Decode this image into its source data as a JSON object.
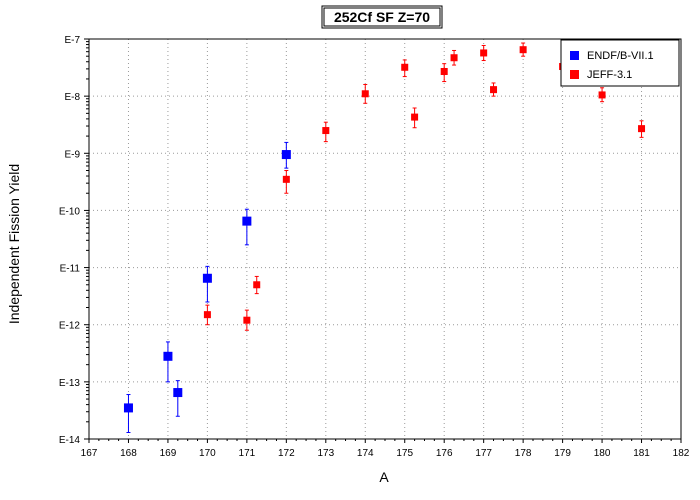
{
  "chart_data": {
    "type": "scatter",
    "title": "252Cf SF Z=70",
    "xlabel": "A",
    "ylabel": "Independent Fission Yield",
    "xlim": [
      167,
      182
    ],
    "ylim": [
      1e-14,
      1e-07
    ],
    "y_scale": "log",
    "grid": true,
    "legend_position": "top-right",
    "x_ticks": [
      "167",
      "168",
      "169",
      "170",
      "171",
      "172",
      "173",
      "174",
      "175",
      "176",
      "177",
      "178",
      "179",
      "180",
      "181",
      "182"
    ],
    "y_ticks": [
      {
        "label": "E-7",
        "value": 1e-07
      },
      {
        "label": "E-8",
        "value": 1e-08
      },
      {
        "label": "E-9",
        "value": 1e-09
      },
      {
        "label": "E-10",
        "value": 1e-10
      },
      {
        "label": "E-11",
        "value": 1e-11
      },
      {
        "label": "E-12",
        "value": 1e-12
      },
      {
        "label": "E-13",
        "value": 1e-13
      },
      {
        "label": "E-14",
        "value": 1e-14
      }
    ],
    "series": [
      {
        "name": "ENDF/B-VII.1",
        "color": "#0000ff",
        "marker": "square",
        "points": [
          {
            "x": 168,
            "y": 3.5e-14,
            "ylo": 1.3e-14,
            "yhi": 6e-14
          },
          {
            "x": 169,
            "y": 2.8e-13,
            "ylo": 1e-13,
            "yhi": 5e-13
          },
          {
            "x": 169.25,
            "y": 6.5e-14,
            "ylo": 2.5e-14,
            "yhi": 1.05e-13
          },
          {
            "x": 170,
            "y": 6.5e-12,
            "ylo": 2.5e-12,
            "yhi": 1.05e-11
          },
          {
            "x": 171,
            "y": 6.5e-11,
            "ylo": 2.5e-11,
            "yhi": 1.05e-10
          },
          {
            "x": 172,
            "y": 9.5e-10,
            "ylo": 5.5e-10,
            "yhi": 1.55e-09
          }
        ]
      },
      {
        "name": "JEFF-3.1",
        "color": "#ff0000",
        "marker": "square",
        "points": [
          {
            "x": 170,
            "y": 1.5e-12,
            "ylo": 1e-12,
            "yhi": 2.2e-12
          },
          {
            "x": 171,
            "y": 1.2e-12,
            "ylo": 8e-13,
            "yhi": 1.8e-12
          },
          {
            "x": 171.25,
            "y": 5e-12,
            "ylo": 3.5e-12,
            "yhi": 7e-12
          },
          {
            "x": 172,
            "y": 3.5e-10,
            "ylo": 2e-10,
            "yhi": 5e-10
          },
          {
            "x": 173,
            "y": 2.5e-09,
            "ylo": 1.6e-09,
            "yhi": 3.5e-09
          },
          {
            "x": 174,
            "y": 1.1e-08,
            "ylo": 7.5e-09,
            "yhi": 1.6e-08
          },
          {
            "x": 175,
            "y": 3.2e-08,
            "ylo": 2.2e-08,
            "yhi": 4.3e-08
          },
          {
            "x": 175.25,
            "y": 4.3e-09,
            "ylo": 2.8e-09,
            "yhi": 6.2e-09
          },
          {
            "x": 176,
            "y": 2.7e-08,
            "ylo": 1.8e-08,
            "yhi": 3.7e-08
          },
          {
            "x": 176.25,
            "y": 4.7e-08,
            "ylo": 3.5e-08,
            "yhi": 6.3e-08
          },
          {
            "x": 177,
            "y": 5.7e-08,
            "ylo": 4.2e-08,
            "yhi": 7.7e-08
          },
          {
            "x": 177.25,
            "y": 1.3e-08,
            "ylo": 1e-08,
            "yhi": 1.7e-08
          },
          {
            "x": 178,
            "y": 6.5e-08,
            "ylo": 5e-08,
            "yhi": 8.5e-08
          },
          {
            "x": 179,
            "y": 3.3e-08,
            "ylo": 2.5e-08,
            "yhi": 4.3e-08
          },
          {
            "x": 180,
            "y": 1.05e-08,
            "ylo": 8e-09,
            "yhi": 1.4e-08
          },
          {
            "x": 181,
            "y": 2.7e-09,
            "ylo": 1.9e-09,
            "yhi": 3.7e-09
          }
        ]
      }
    ]
  }
}
